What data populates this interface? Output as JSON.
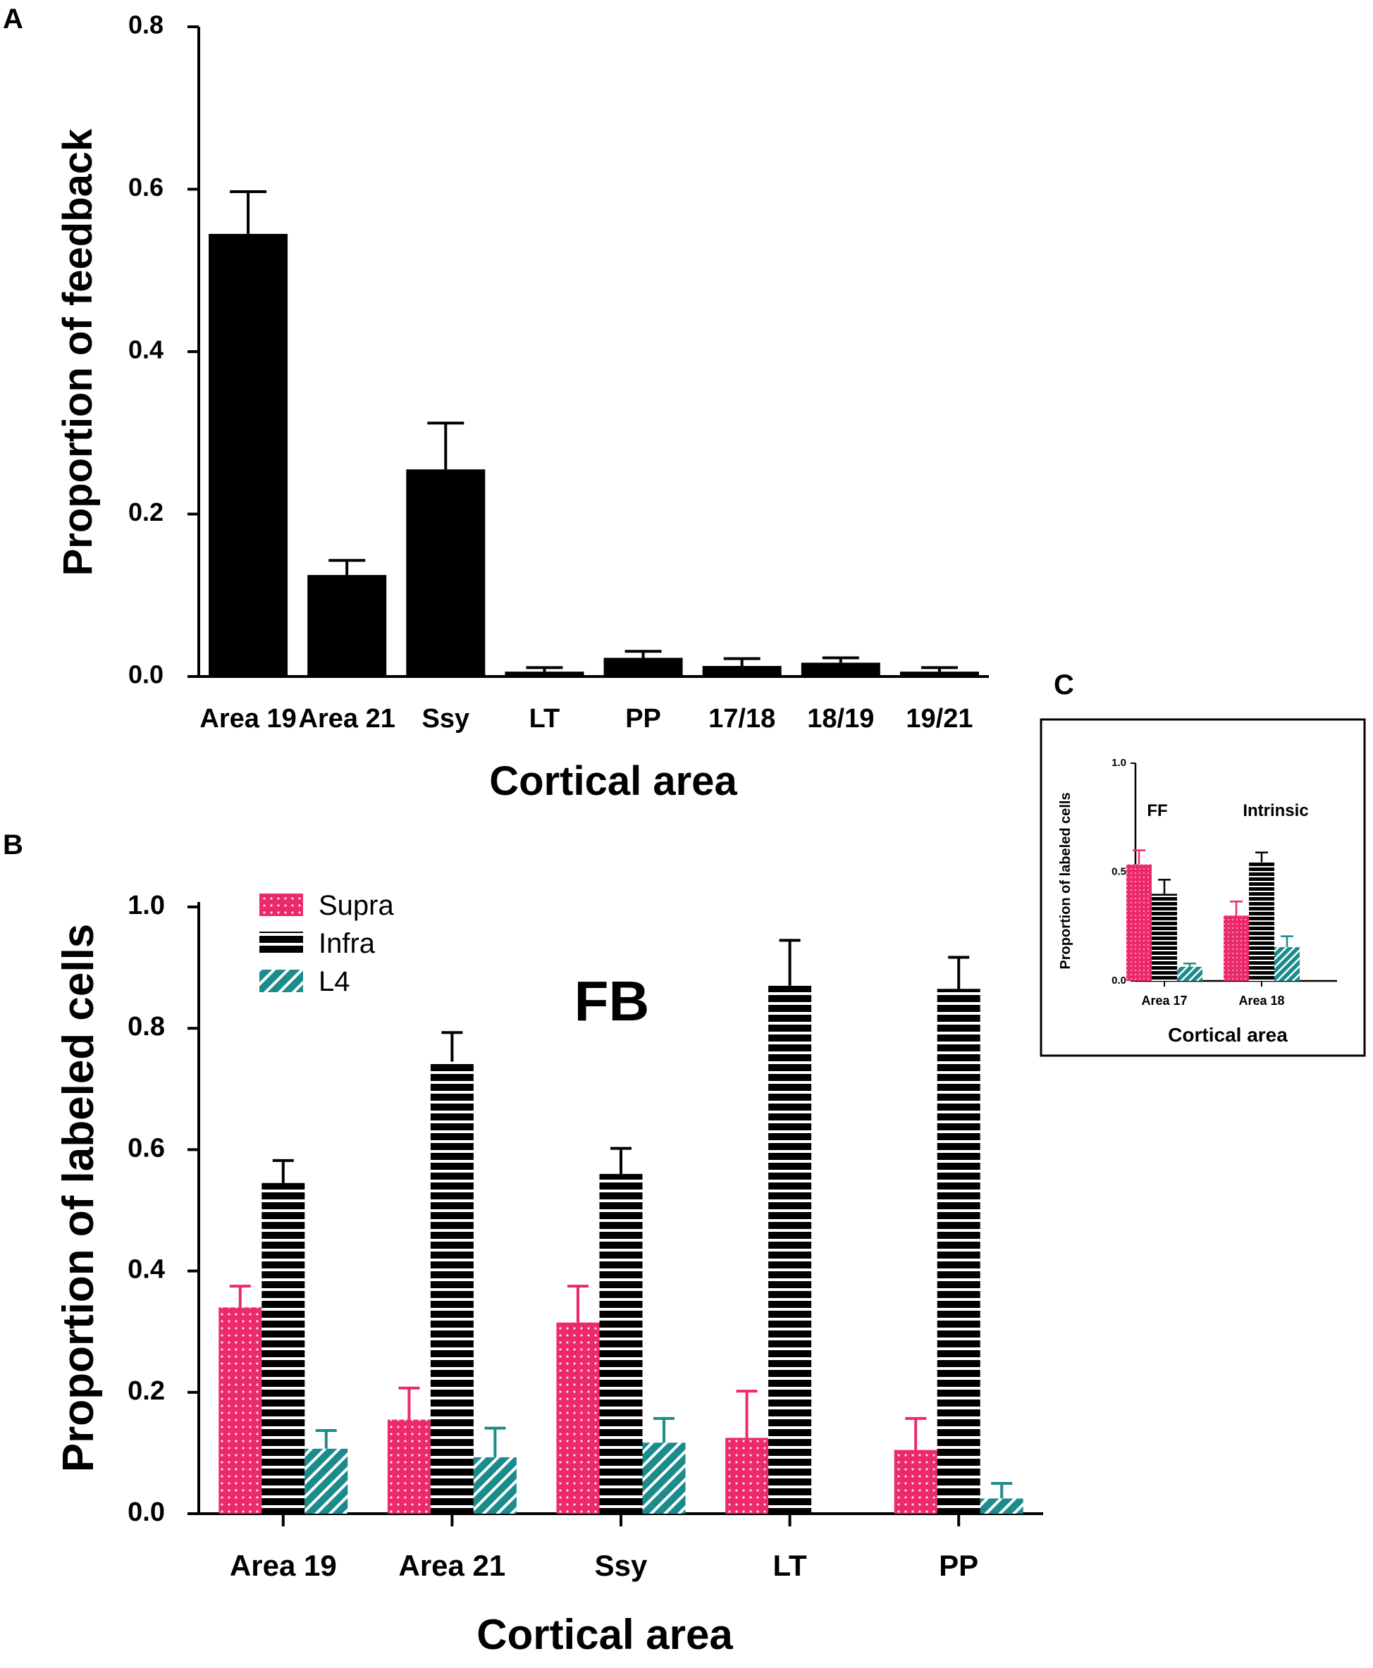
{
  "colors": {
    "supra": "#ec2a6b",
    "infra": "#000000",
    "l4": "#1b8c8c",
    "bar": "#000000",
    "axis": "#000000"
  },
  "chart_data": [
    {
      "panel": "A",
      "type": "bar",
      "title": "",
      "xlabel": "Cortical area",
      "ylabel": "Proportion of feedback",
      "ylim": [
        0,
        0.8
      ],
      "yticks": [
        "0.0",
        "0.2",
        "0.4",
        "0.6",
        "0.8"
      ],
      "categories": [
        "Area 19",
        "Area 21",
        "Ssy",
        "LT",
        "PP",
        "17/18",
        "18/19",
        "19/21"
      ],
      "values": [
        0.545,
        0.125,
        0.255,
        0.006,
        0.023,
        0.013,
        0.017,
        0.006
      ],
      "errors": [
        0.052,
        0.018,
        0.057,
        0.005,
        0.008,
        0.009,
        0.006,
        0.005
      ]
    },
    {
      "panel": "B",
      "type": "bar",
      "title": "",
      "annotation": "FB",
      "xlabel": "Cortical area",
      "ylabel": "Proportion of labeled cells",
      "ylim": [
        0,
        1.0
      ],
      "yticks": [
        "0.0",
        "0.2",
        "0.4",
        "0.6",
        "0.8",
        "1.0"
      ],
      "categories": [
        "Area 19",
        "Area 21",
        "Ssy",
        "LT",
        "PP"
      ],
      "legend_position": "top-left",
      "series": [
        {
          "name": "Supra",
          "values": [
            0.34,
            0.155,
            0.315,
            0.125,
            0.105
          ],
          "errors": [
            0.035,
            0.052,
            0.06,
            0.077,
            0.052
          ]
        },
        {
          "name": "Infra",
          "values": [
            0.545,
            0.745,
            0.56,
            0.87,
            0.865
          ],
          "errors": [
            0.037,
            0.048,
            0.042,
            0.075,
            0.052
          ]
        },
        {
          "name": "L4",
          "values": [
            0.107,
            0.093,
            0.117,
            null,
            0.025
          ],
          "errors": [
            0.03,
            0.048,
            0.04,
            null,
            0.025
          ]
        }
      ]
    },
    {
      "panel": "C",
      "type": "bar",
      "title": "",
      "xlabel": "Cortical area",
      "ylabel": "Proportion of labeled cells",
      "ylim": [
        0,
        1.0
      ],
      "yticks": [
        "0.0",
        "0.5",
        "1.0"
      ],
      "categories": [
        "Area 17",
        "Area 18"
      ],
      "group_labels": [
        "FF",
        "Intrinsic"
      ],
      "series": [
        {
          "name": "Supra",
          "values": [
            0.535,
            0.3
          ],
          "errors": [
            0.065,
            0.065
          ]
        },
        {
          "name": "Infra",
          "values": [
            0.4,
            0.545
          ],
          "errors": [
            0.065,
            0.045
          ]
        },
        {
          "name": "L4",
          "values": [
            0.065,
            0.155
          ],
          "errors": [
            0.015,
            0.05
          ]
        }
      ]
    }
  ]
}
